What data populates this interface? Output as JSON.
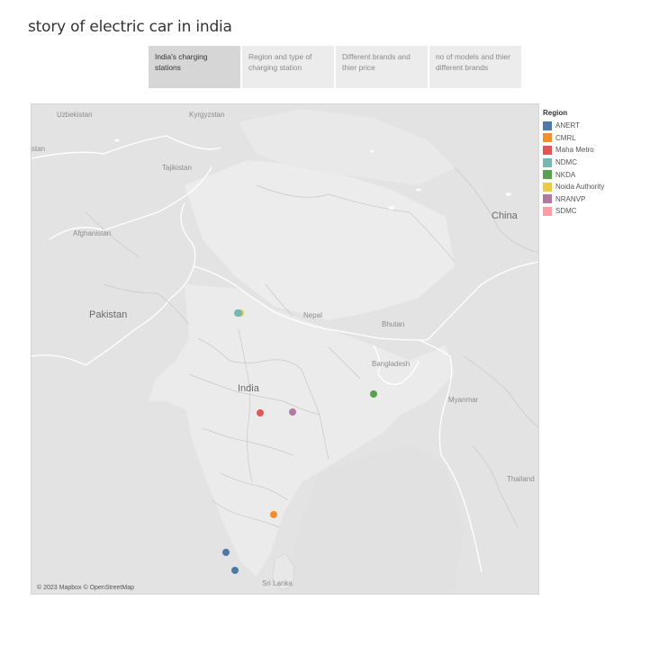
{
  "title": "story of electric car in india",
  "tabs": [
    {
      "label": "India's charging stations",
      "active": true
    },
    {
      "label": "Region and type of charging station",
      "active": false
    },
    {
      "label": "Different brands and thier price",
      "active": false
    },
    {
      "label": "no of models and thier different brands",
      "active": false
    }
  ],
  "map": {
    "labels": {
      "uzbekistan": "Uzbekistan",
      "kyrgyzstan": "Kyrgyzstan",
      "stan": "stan",
      "tajikistan": "Tajikistan",
      "afghanistan": "Afghanistan",
      "china": "China",
      "pakistan": "Pakistan",
      "nepal": "Nepal",
      "bhutan": "Bhutan",
      "bangladesh": "Bangladesh",
      "india": "India",
      "myanmar": "Myanmar",
      "thailand": "Thailand",
      "sri_lanka": "Sri Lanka"
    },
    "attribution": "© 2023 Mapbox © OpenStreetMap"
  },
  "legend": {
    "title": "Region",
    "items": [
      {
        "label": "ANERT",
        "color": "#4e79a7"
      },
      {
        "label": "CMRL",
        "color": "#f28e2b"
      },
      {
        "label": "Maha Metro",
        "color": "#e15759"
      },
      {
        "label": "NDMC",
        "color": "#76b7b2"
      },
      {
        "label": "NKDA",
        "color": "#59a14f"
      },
      {
        "label": "Noida Authority",
        "color": "#edc948"
      },
      {
        "label": "NRANVP",
        "color": "#b07aa1"
      },
      {
        "label": "SDMC",
        "color": "#ff9da7"
      }
    ]
  }
}
